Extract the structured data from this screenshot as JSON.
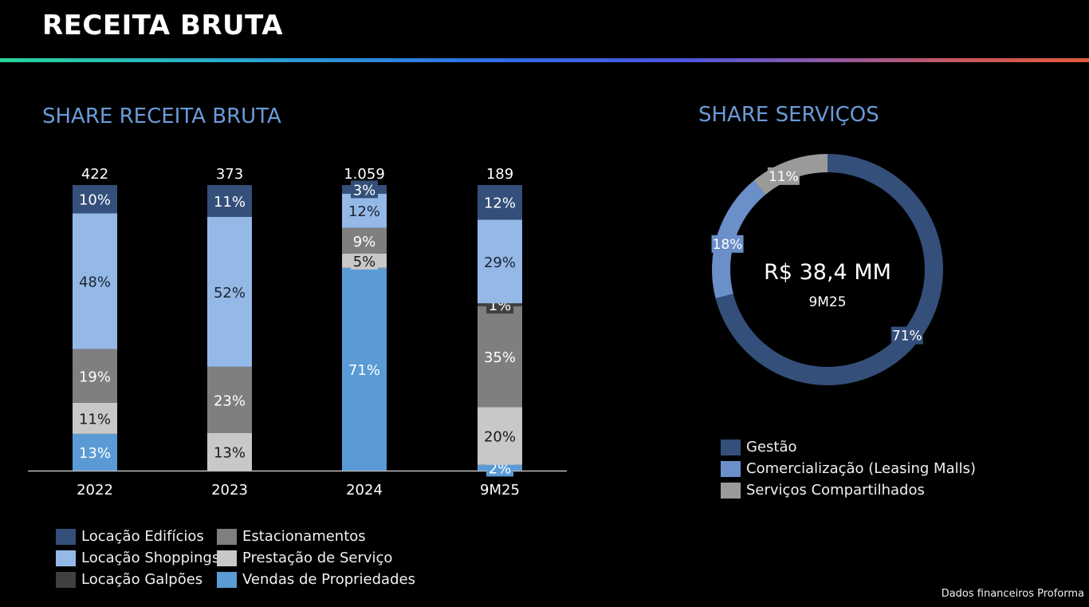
{
  "header": {
    "title": "RECEITA BRUTA"
  },
  "footnote": "Dados financeiros Proforma",
  "chart_data": [
    {
      "type": "bar",
      "stacked": true,
      "title": "SHARE RECEITA BRUTA",
      "xlabel": "",
      "ylabel": "",
      "ylim": [
        0,
        100
      ],
      "grid": false,
      "legend_position": "bottom",
      "categories": [
        "2022",
        "2023",
        "2024",
        "9M25"
      ],
      "totals": [
        "422",
        "373",
        "1.059",
        "189"
      ],
      "series": [
        {
          "name": "Vendas de Propriedades",
          "color": "#5b9bd5",
          "label_color": "#ffffff",
          "values": [
            13,
            0,
            71,
            2
          ]
        },
        {
          "name": "Prestação de Serviço",
          "color": "#c8c8c8",
          "label_color": "#1a1a1a",
          "values": [
            11,
            13,
            5,
            20
          ]
        },
        {
          "name": "Estacionamentos",
          "color": "#7f7f7f",
          "label_color": "#ffffff",
          "values": [
            19,
            23,
            9,
            35
          ]
        },
        {
          "name": "Locação Galpões",
          "color": "#404040",
          "label_color": "#ffffff",
          "values": [
            0,
            0,
            0,
            1
          ]
        },
        {
          "name": "Locação Shoppings",
          "color": "#95b9e6",
          "label_color": "#1a2233",
          "values": [
            48,
            52,
            12,
            29
          ]
        },
        {
          "name": "Locação Edifícios",
          "color": "#344f7a",
          "label_color": "#ffffff",
          "values": [
            10,
            11,
            3,
            12
          ]
        }
      ],
      "legend_order": [
        "Locação Edifícios",
        "Locação Shoppings",
        "Locação Galpões",
        "Estacionamentos",
        "Prestação de Serviço",
        "Vendas de Propriedades"
      ]
    },
    {
      "type": "pie",
      "donut": true,
      "title": "SHARE SERVIÇOS",
      "center_value": "R$ 38,4 MM",
      "center_label": "9M25",
      "legend_position": "bottom",
      "slices": [
        {
          "name": "Gestão",
          "value": 71,
          "label": "71%",
          "color": "#344f7a"
        },
        {
          "name": "Comercialização (Leasing Malls)",
          "value": 18,
          "label": "18%",
          "color": "#6a8fc9"
        },
        {
          "name": "Serviços Compartilhados",
          "value": 11,
          "label": "11%",
          "color": "#9a9a9a"
        }
      ]
    }
  ]
}
